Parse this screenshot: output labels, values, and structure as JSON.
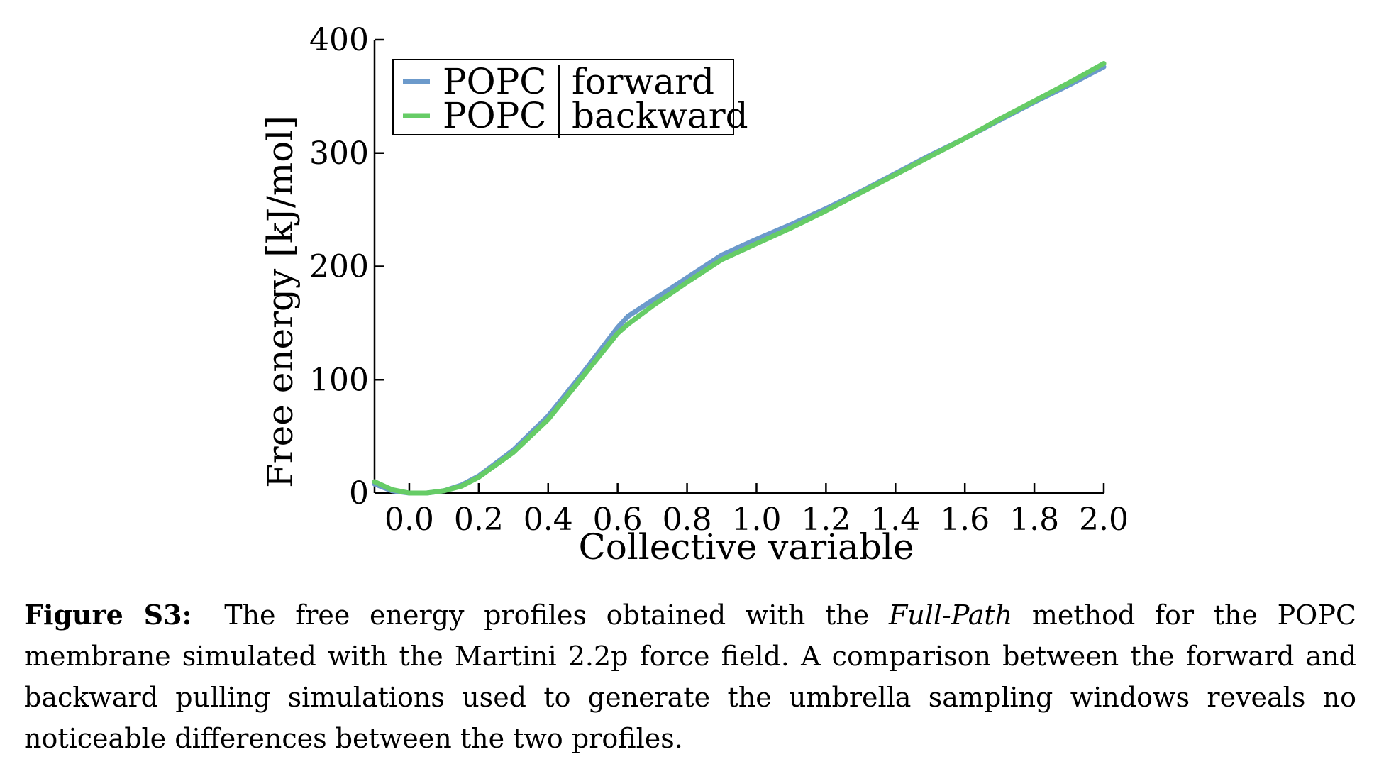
{
  "chart_data": {
    "type": "line",
    "xlabel": "Collective variable",
    "ylabel": "Free energy [kJ/mol]",
    "xlim": [
      -0.1,
      2.0
    ],
    "ylim": [
      0,
      400
    ],
    "xticks": [
      "0.0",
      "0.2",
      "0.4",
      "0.6",
      "0.8",
      "1.0",
      "1.2",
      "1.4",
      "1.6",
      "1.8",
      "2.0"
    ],
    "yticks": [
      "0",
      "100",
      "200",
      "300",
      "400"
    ],
    "grid": false,
    "legend_position": "top-left",
    "series": [
      {
        "name": "POPC",
        "direction": "forward",
        "color": "#6c9acb",
        "x": [
          -0.1,
          -0.05,
          0.0,
          0.05,
          0.1,
          0.15,
          0.2,
          0.3,
          0.4,
          0.5,
          0.6,
          0.63,
          0.7,
          0.8,
          0.9,
          1.0,
          1.1,
          1.2,
          1.3,
          1.4,
          1.5,
          1.6,
          1.7,
          1.8,
          1.9,
          2.0
        ],
        "y": [
          8,
          2,
          0,
          0,
          2,
          7,
          15,
          38,
          68,
          106,
          146,
          156,
          170,
          190,
          210,
          224,
          237,
          251,
          266,
          282,
          298,
          313,
          329,
          345,
          360,
          376
        ]
      },
      {
        "name": "POPC",
        "direction": "backward",
        "color": "#66cc66",
        "x": [
          -0.1,
          -0.05,
          0.0,
          0.05,
          0.1,
          0.15,
          0.2,
          0.3,
          0.4,
          0.5,
          0.6,
          0.63,
          0.7,
          0.8,
          0.9,
          1.0,
          1.1,
          1.2,
          1.3,
          1.4,
          1.5,
          1.6,
          1.7,
          1.8,
          1.9,
          2.0
        ],
        "y": [
          10,
          3,
          0,
          0,
          2,
          6,
          14,
          36,
          65,
          103,
          141,
          149,
          165,
          186,
          206,
          220,
          234,
          249,
          265,
          281,
          297,
          313,
          330,
          346,
          362,
          379
        ]
      }
    ]
  },
  "caption": {
    "label": "Figure S3:",
    "text_before": "The free energy profiles obtained with the",
    "method": "Full-Path",
    "text_after": "method for the POPC membrane simulated with the Martini 2.2p force field. A comparison between the forward and backward pulling simulations used to generate the umbrella sampling windows reveals no noticeable differences between the two profiles."
  }
}
